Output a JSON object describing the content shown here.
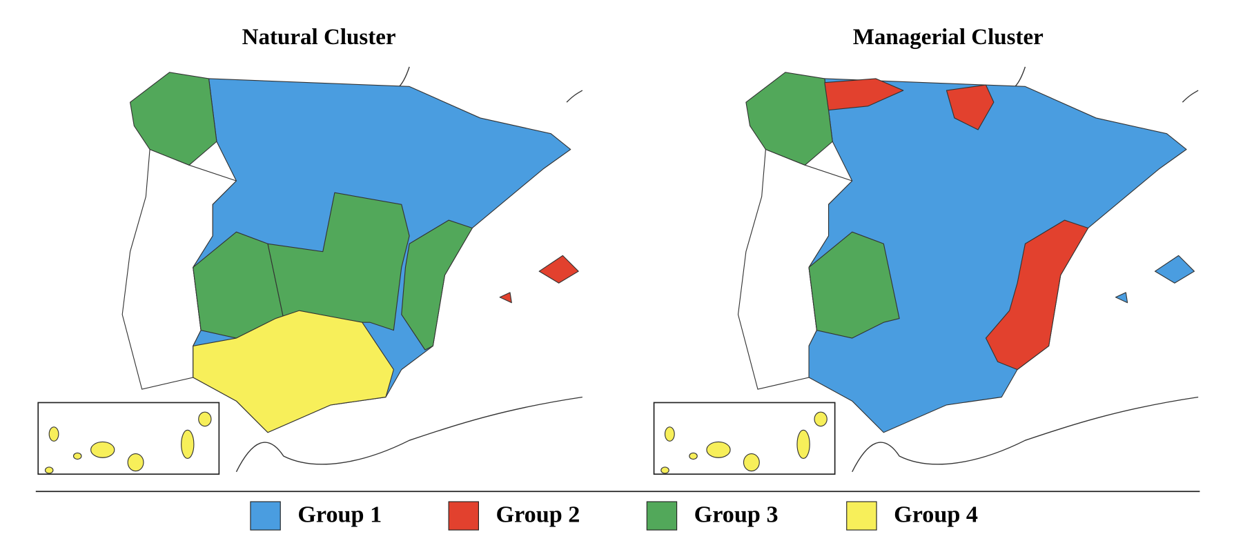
{
  "maps": [
    {
      "title": "Natural Cluster"
    },
    {
      "title": "Managerial Cluster"
    }
  ],
  "legend": {
    "items": [
      {
        "label": "Group 1",
        "color": "#4a9de0"
      },
      {
        "label": "Group 2",
        "color": "#e2412e"
      },
      {
        "label": "Group 3",
        "color": "#52a85a"
      },
      {
        "label": "Group 4",
        "color": "#f7ef5a"
      }
    ]
  }
}
